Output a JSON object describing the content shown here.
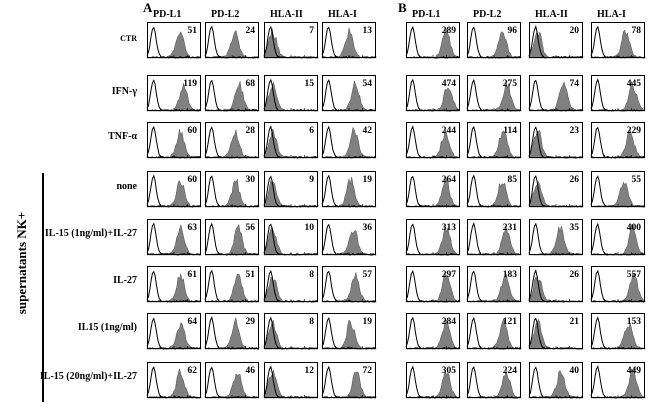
{
  "panels": [
    {
      "letter": "A",
      "columns": [
        "PD-L1",
        "PD-L2",
        "HLA-II",
        "HLA-I"
      ]
    },
    {
      "letter": "B",
      "columns": [
        "PD-L1",
        "PD-L2",
        "HLA-II",
        "HLA-I"
      ]
    }
  ],
  "rows": [
    "CTR",
    "IFN-γ",
    "TNF-α",
    "none",
    "IL-15 (1ng/ml)+IL-27",
    "IL-27",
    "IL15 (1ng/ml)",
    "IL-15 (20ng/ml)+IL-27"
  ],
  "side_label": "supernatants NK+",
  "values": {
    "A": [
      [
        "51",
        "24",
        "7",
        "13"
      ],
      [
        "119",
        "68",
        "15",
        "54"
      ],
      [
        "60",
        "28",
        "6",
        "42"
      ],
      [
        "60",
        "30",
        "9",
        "19"
      ],
      [
        "63",
        "56",
        "10",
        "36"
      ],
      [
        "61",
        "51",
        "8",
        "57"
      ],
      [
        "64",
        "29",
        "8",
        "19"
      ],
      [
        "62",
        "46",
        "12",
        "72"
      ]
    ],
    "B": [
      [
        "289",
        "96",
        "20",
        "78"
      ],
      [
        "474",
        "275",
        "74",
        "445"
      ],
      [
        "244",
        "114",
        "23",
        "229"
      ],
      [
        "264",
        "85",
        "26",
        "55"
      ],
      [
        "313",
        "231",
        "35",
        "400"
      ],
      [
        "297",
        "183",
        "26",
        "557"
      ],
      [
        "284",
        "121",
        "21",
        "153"
      ],
      [
        "305",
        "224",
        "40",
        "449"
      ]
    ]
  },
  "colors": {
    "filled_histogram": "#808080",
    "isotype_outline": "#000000",
    "frame": "#000000"
  }
}
